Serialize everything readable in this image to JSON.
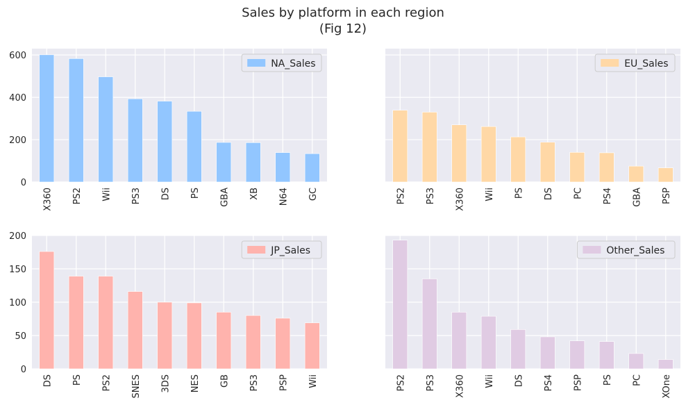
{
  "figure": {
    "title_line1": "Sales by platform in each region",
    "title_line2": "(Fig 12)"
  },
  "chart_data": [
    {
      "type": "bar",
      "legend": "NA_Sales",
      "legend_position": "top-right",
      "color": "#92c6ff",
      "categories": [
        "X360",
        "PS2",
        "Wii",
        "PS3",
        "DS",
        "PS",
        "GBA",
        "XB",
        "N64",
        "GC"
      ],
      "values": [
        601,
        583,
        497,
        393,
        382,
        334,
        187,
        186,
        139,
        134
      ],
      "ylim": [
        0,
        630
      ],
      "yticks": [
        0,
        200,
        400,
        600
      ],
      "grid": true,
      "xlabel": "",
      "ylabel": ""
    },
    {
      "type": "bar",
      "legend": "EU_Sales",
      "legend_position": "top-right",
      "color": "#ffd8a6",
      "categories": [
        "PS2",
        "PS3",
        "X360",
        "Wii",
        "PS",
        "DS",
        "PC",
        "PS4",
        "GBA",
        "PSP"
      ],
      "values": [
        339,
        330,
        270,
        262,
        213,
        188,
        140,
        138,
        75,
        67
      ],
      "ylim": [
        0,
        630
      ],
      "yticks": [],
      "grid": true,
      "xlabel": "",
      "ylabel": ""
    },
    {
      "type": "bar",
      "legend": "JP_Sales",
      "legend_position": "top-right",
      "color": "#ffb3ad",
      "categories": [
        "DS",
        "PS",
        "PS2",
        "SNES",
        "3DS",
        "NES",
        "GB",
        "PS3",
        "PSP",
        "Wii"
      ],
      "values": [
        176,
        139,
        139,
        116,
        100,
        99,
        85,
        80,
        76,
        69
      ],
      "ylim": [
        0,
        200
      ],
      "yticks": [
        0,
        50,
        100,
        150,
        200
      ],
      "grid": true,
      "xlabel": "",
      "ylabel": ""
    },
    {
      "type": "bar",
      "legend": "Other_Sales",
      "legend_position": "top-right",
      "color": "#e0cbe3",
      "categories": [
        "PS2",
        "PS3",
        "X360",
        "Wii",
        "DS",
        "PS4",
        "PSP",
        "PS",
        "PC",
        "XOne"
      ],
      "values": [
        193,
        135,
        85,
        79,
        59,
        48,
        42,
        41,
        23,
        14
      ],
      "ylim": [
        0,
        200
      ],
      "yticks": [],
      "grid": true,
      "xlabel": "",
      "ylabel": ""
    }
  ]
}
